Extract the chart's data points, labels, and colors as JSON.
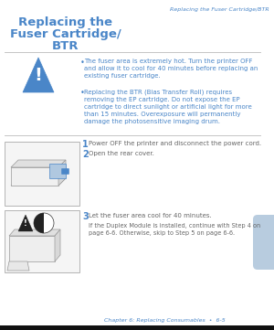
{
  "page_bg": "#ffffff",
  "header_text": "Replacing the Fuser Cartridge/BTR",
  "header_color": "#4a86c8",
  "header_fontsize": 4.5,
  "title_lines": [
    "Replacing the",
    "Fuser Cartridge/",
    "BTR"
  ],
  "title_color": "#4a86c8",
  "title_fontsize": 9.5,
  "warning_bullet1": "The fuser area is extremely hot. Turn the printer OFF\nand allow it to cool for 40 minutes before replacing an\nexisting fuser cartridge.",
  "warning_bullet2": "Replacing the BTR (Bias Transfer Roll) requires\nremoving the EP cartridge. Do not expose the EP\ncartridge to direct sunlight or artificial light for more\nthan 15 minutes. Overexposure will permanently\ndamage the photosensitive imaging drum.",
  "warning_fontsize": 5.0,
  "warning_color": "#4a86c8",
  "step1_num": "1",
  "step1_text": "Power OFF the printer and disconnect the power cord.",
  "step2_num": "2",
  "step2_text": "Open the rear cover.",
  "step3_num": "3",
  "step3_text": "Let the fuser area cool for 40 minutes.",
  "step3_sub": "If the Duplex Module is installed, continue with Step 4 on\npage 6-6. Otherwise, skip to Step 5 on page 6-6.",
  "step_fontsize": 5.0,
  "step_num_fontsize": 7.0,
  "step_color": "#4a86c8",
  "step_text_color": "#666666",
  "footer_text": "Chapter 6: Replacing Consumables  •  6-5",
  "footer_color": "#4a86c8",
  "footer_fontsize": 4.5,
  "tab_color": "#b8ccdf",
  "line_color": "#bbbbbb",
  "triangle_color": "#4a86c8",
  "triangle_exclaim": "#ffffff",
  "box_edge": "#aaaaaa",
  "box_face": "#f5f5f5"
}
